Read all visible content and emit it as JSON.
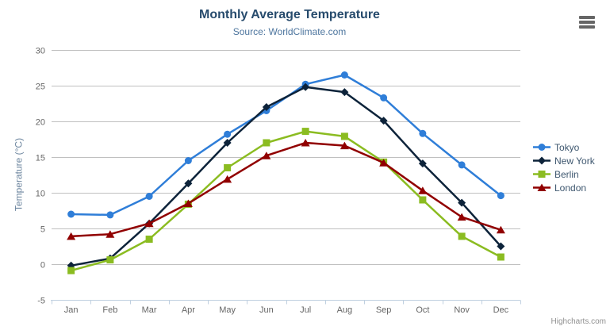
{
  "chart_data": {
    "type": "line",
    "title": "Monthly Average Temperature",
    "subtitle": "Source: WorldClimate.com",
    "categories": [
      "Jan",
      "Feb",
      "Mar",
      "Apr",
      "May",
      "Jun",
      "Jul",
      "Aug",
      "Sep",
      "Oct",
      "Nov",
      "Dec"
    ],
    "series": [
      {
        "name": "Tokyo",
        "color": "#2f7ed8",
        "marker": "circle",
        "values": [
          7.0,
          6.9,
          9.5,
          14.5,
          18.2,
          21.5,
          25.2,
          26.5,
          23.3,
          18.3,
          13.9,
          9.6
        ]
      },
      {
        "name": "New York",
        "color": "#0d233a",
        "marker": "diamond",
        "values": [
          -0.2,
          0.8,
          5.7,
          11.3,
          17.0,
          22.0,
          24.8,
          24.1,
          20.1,
          14.1,
          8.6,
          2.5
        ]
      },
      {
        "name": "Berlin",
        "color": "#8bbc21",
        "marker": "square",
        "values": [
          -0.9,
          0.6,
          3.5,
          8.4,
          13.5,
          17.0,
          18.6,
          17.9,
          14.3,
          9.0,
          3.9,
          1.0
        ]
      },
      {
        "name": "London",
        "color": "#910000",
        "marker": "triangle",
        "values": [
          3.9,
          4.2,
          5.7,
          8.5,
          11.9,
          15.2,
          17.0,
          16.6,
          14.2,
          10.3,
          6.6,
          4.8
        ]
      }
    ],
    "xlabel": "",
    "ylabel": "Temperature (°C)",
    "ylim": [
      -5,
      30
    ],
    "ytick_step": 5,
    "grid": true,
    "legend_position": "right-middle"
  },
  "credits": {
    "label": "Highcharts.com"
  },
  "icons": {
    "context_menu": "hamburger-menu-icon"
  },
  "colors": {
    "title": "#274b6d",
    "subtitle": "#4d759e",
    "axis_title": "#6D869F",
    "tick_label": "#666666",
    "legend_text": "#3E576F",
    "gridline": "#C0C0C0",
    "axis_line": "#C0D0E0",
    "credits": "#909090",
    "context_menu_icon": "#666666"
  }
}
